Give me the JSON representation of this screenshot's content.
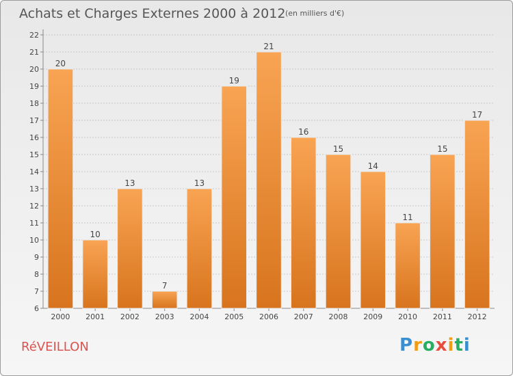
{
  "header": {
    "title": "Achats et Charges Externes 2000 à 2012",
    "subtitle": "(en milliers d'€)"
  },
  "footer": {
    "commune": "RéVEILLON",
    "brand": "Proxiti"
  },
  "colors": {
    "bar_top": "#f8a453",
    "bar_bottom": "#d8741e",
    "grid": "#c8c8c8",
    "title": "#555555",
    "commune": "#d9534f"
  },
  "chart_data": {
    "type": "bar",
    "title": "Achats et Charges Externes 2000 à 2012",
    "subtitle": "(en milliers d'€)",
    "xlabel": "",
    "ylabel": "",
    "categories": [
      "2000",
      "2001",
      "2002",
      "2003",
      "2004",
      "2005",
      "2006",
      "2007",
      "2008",
      "2009",
      "2010",
      "2011",
      "2012"
    ],
    "values": [
      20,
      10,
      13,
      7,
      13,
      19,
      21,
      16,
      15,
      14,
      11,
      15,
      17
    ],
    "ylim": [
      6,
      22
    ],
    "yticks": [
      6,
      7,
      8,
      9,
      10,
      11,
      12,
      13,
      14,
      15,
      16,
      17,
      18,
      19,
      20,
      21,
      22
    ],
    "grid": true,
    "legend": "none",
    "data_labels": true
  }
}
